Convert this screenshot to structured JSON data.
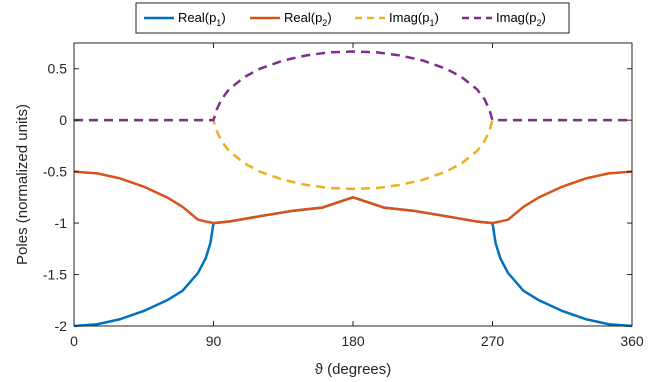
{
  "chart_data": {
    "type": "line",
    "title": "",
    "xlabel": "ϑ (degrees)",
    "ylabel": "Poles (normalized units)",
    "xlim": [
      0,
      360
    ],
    "ylim": [
      -2,
      0.75
    ],
    "xticks": [
      0,
      90,
      180,
      270,
      360
    ],
    "xtick_labels": [
      "0",
      "90",
      "180",
      "270",
      "360"
    ],
    "yticks": [
      0.5,
      0,
      -0.5,
      -1,
      -1.5,
      -2
    ],
    "ytick_labels": [
      "0.5",
      "0",
      "-0.5",
      "-1",
      "-1.5",
      "-2"
    ],
    "grid": false,
    "legend_position": "top",
    "series": [
      {
        "name": "Real(p1)",
        "name_main": "Real(p",
        "name_sub": "1",
        "name_end": ")",
        "color": "#0072BD",
        "dash": "solid",
        "x": [
          0,
          15,
          30,
          45,
          60,
          70,
          80,
          85,
          88,
          90,
          100,
          120,
          140,
          160,
          180,
          200,
          220,
          240,
          260,
          270,
          272,
          275,
          280,
          290,
          300,
          315,
          330,
          345,
          360
        ],
        "y": [
          -2,
          -1.983,
          -1.933,
          -1.854,
          -1.75,
          -1.658,
          -1.484,
          -1.341,
          -1.194,
          -1,
          -0.985,
          -0.933,
          -0.883,
          -0.85,
          -0.75,
          -0.85,
          -0.883,
          -0.933,
          -0.985,
          -1,
          -1.194,
          -1.341,
          -1.484,
          -1.658,
          -1.75,
          -1.854,
          -1.933,
          -1.983,
          -2
        ]
      },
      {
        "name": "Real(p2)",
        "name_main": "Real(p",
        "name_sub": "2",
        "name_end": ")",
        "color": "#D95319",
        "dash": "solid",
        "x": [
          0,
          15,
          30,
          45,
          60,
          70,
          80,
          85,
          88,
          90,
          100,
          120,
          140,
          160,
          180,
          200,
          220,
          240,
          260,
          270,
          272,
          275,
          280,
          290,
          300,
          315,
          330,
          345,
          360
        ],
        "y": [
          -0.5,
          -0.517,
          -0.567,
          -0.646,
          -0.75,
          -0.842,
          -0.967,
          -0.984,
          -0.993,
          -1,
          -0.985,
          -0.933,
          -0.883,
          -0.85,
          -0.75,
          -0.85,
          -0.883,
          -0.933,
          -0.985,
          -1,
          -0.993,
          -0.984,
          -0.967,
          -0.842,
          -0.75,
          -0.646,
          -0.567,
          -0.517,
          -0.5
        ]
      },
      {
        "name": "Imag(p1)",
        "name_main": "Imag(p",
        "name_sub": "1",
        "name_end": ")",
        "color": "#EDB120",
        "dash": "dashed",
        "x": [
          0,
          90,
          92,
          95,
          100,
          110,
          120,
          135,
          150,
          165,
          180,
          195,
          210,
          225,
          240,
          250,
          260,
          265,
          268,
          270,
          360
        ],
        "y": [
          0,
          0,
          -0.1,
          -0.2,
          -0.3,
          -0.42,
          -0.5,
          -0.58,
          -0.63,
          -0.66,
          -0.667,
          -0.66,
          -0.63,
          -0.58,
          -0.5,
          -0.42,
          -0.3,
          -0.2,
          -0.1,
          0,
          0
        ]
      },
      {
        "name": "Imag(p2)",
        "name_main": "Imag(p",
        "name_sub": "2",
        "name_end": ")",
        "color": "#7E2F8E",
        "dash": "dashed",
        "x": [
          0,
          90,
          92,
          95,
          100,
          110,
          120,
          135,
          150,
          165,
          180,
          195,
          210,
          225,
          240,
          250,
          260,
          265,
          268,
          270,
          360
        ],
        "y": [
          0,
          0,
          0.1,
          0.2,
          0.3,
          0.42,
          0.5,
          0.58,
          0.63,
          0.66,
          0.667,
          0.66,
          0.63,
          0.58,
          0.5,
          0.42,
          0.3,
          0.2,
          0.1,
          0,
          0
        ]
      }
    ]
  }
}
